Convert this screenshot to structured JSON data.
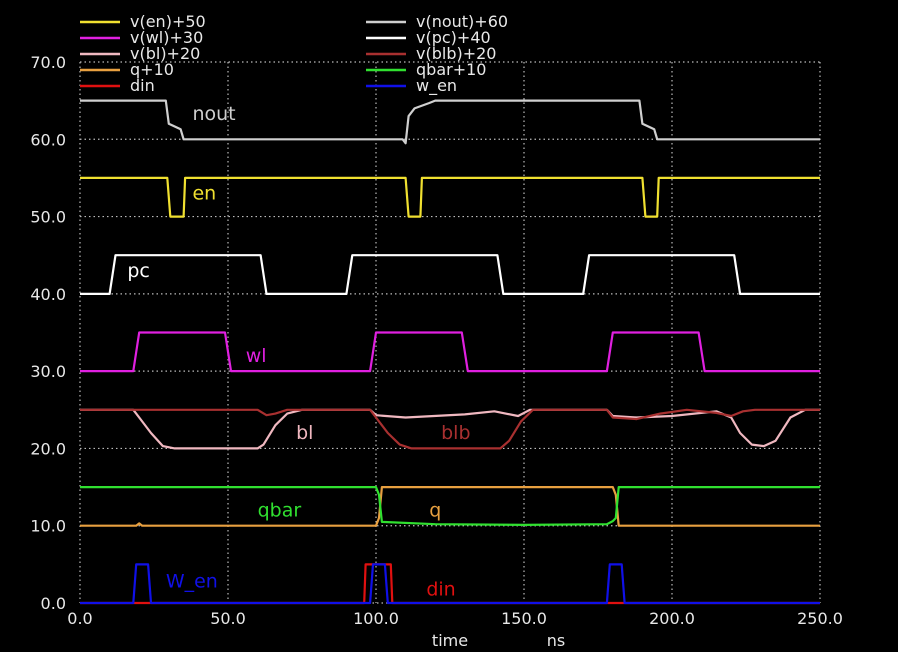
{
  "chart_data": {
    "type": "line",
    "xlabel": "time",
    "xunit": "ns",
    "xlim": [
      0,
      250
    ],
    "ylim": [
      0,
      70
    ],
    "x_ticks": [
      "0.0",
      "50.0",
      "100.0",
      "150.0",
      "200.0",
      "250.0"
    ],
    "y_ticks": [
      "0.0",
      "10.0",
      "20.0",
      "30.0",
      "40.0",
      "50.0",
      "60.0",
      "70.0"
    ],
    "grid": true,
    "legend_position": "top",
    "series": [
      {
        "name": "v(en)+50",
        "color": "#f0e030",
        "annotation": "en",
        "points": [
          [
            0,
            55
          ],
          [
            29.5,
            55
          ],
          [
            30.5,
            50
          ],
          [
            35,
            50
          ],
          [
            35.5,
            55
          ],
          [
            110,
            55
          ],
          [
            111,
            50
          ],
          [
            115,
            50
          ],
          [
            115.5,
            55
          ],
          [
            190,
            55
          ],
          [
            191,
            50
          ],
          [
            195,
            50
          ],
          [
            195.5,
            55
          ],
          [
            250,
            55
          ]
        ]
      },
      {
        "name": "v(nout)+60",
        "color": "#cfcfcf",
        "annotation": "nout",
        "points": [
          [
            0,
            65
          ],
          [
            29,
            65
          ],
          [
            30,
            62
          ],
          [
            34,
            61.3
          ],
          [
            35,
            60
          ],
          [
            109,
            60
          ],
          [
            110,
            59.5
          ],
          [
            111,
            63
          ],
          [
            113,
            64
          ],
          [
            118,
            64.7
          ],
          [
            120,
            65
          ],
          [
            189,
            65
          ],
          [
            190,
            62
          ],
          [
            194,
            61.3
          ],
          [
            195,
            60
          ],
          [
            250,
            60
          ]
        ]
      },
      {
        "name": "v(wl)+30",
        "color": "#e020e0",
        "annotation": "wl",
        "points": [
          [
            0,
            30
          ],
          [
            18,
            30
          ],
          [
            20,
            35
          ],
          [
            49,
            35
          ],
          [
            51,
            30
          ],
          [
            98,
            30
          ],
          [
            100,
            35
          ],
          [
            129,
            35
          ],
          [
            131,
            30
          ],
          [
            178,
            30
          ],
          [
            180,
            35
          ],
          [
            209,
            35
          ],
          [
            211,
            30
          ],
          [
            250,
            30
          ]
        ]
      },
      {
        "name": "v(pc)+40",
        "color": "#ffffff",
        "annotation": "pc",
        "points": [
          [
            0,
            40
          ],
          [
            10,
            40
          ],
          [
            12,
            45
          ],
          [
            61,
            45
          ],
          [
            63,
            40
          ],
          [
            90,
            40
          ],
          [
            92,
            45
          ],
          [
            141,
            45
          ],
          [
            143,
            40
          ],
          [
            170,
            40
          ],
          [
            172,
            45
          ],
          [
            221,
            45
          ],
          [
            223,
            40
          ],
          [
            250,
            40
          ]
        ]
      },
      {
        "name": "v(bl)+20",
        "color": "#f0b8c0",
        "annotation": "bl",
        "points": [
          [
            0,
            25
          ],
          [
            18,
            25
          ],
          [
            20,
            24
          ],
          [
            24,
            22
          ],
          [
            28,
            20.3
          ],
          [
            32,
            20
          ],
          [
            60,
            20
          ],
          [
            62,
            20.5
          ],
          [
            66,
            23
          ],
          [
            70,
            24.5
          ],
          [
            75,
            25
          ],
          [
            98,
            25
          ],
          [
            100,
            24.3
          ],
          [
            110,
            24
          ],
          [
            130,
            24.4
          ],
          [
            140,
            24.8
          ],
          [
            148,
            24.2
          ],
          [
            152,
            25
          ],
          [
            178,
            25
          ],
          [
            180,
            24.2
          ],
          [
            188,
            24
          ],
          [
            200,
            24.2
          ],
          [
            215,
            24.8
          ],
          [
            220,
            24
          ],
          [
            223,
            22
          ],
          [
            227,
            20.5
          ],
          [
            231,
            20.3
          ],
          [
            235,
            21
          ],
          [
            240,
            24
          ],
          [
            245,
            25
          ],
          [
            250,
            25
          ]
        ]
      },
      {
        "name": "v(blb)+20",
        "color": "#a83030",
        "annotation": "blb",
        "points": [
          [
            0,
            25
          ],
          [
            60,
            25
          ],
          [
            63,
            24.3
          ],
          [
            66,
            24.5
          ],
          [
            70,
            25
          ],
          [
            98,
            25
          ],
          [
            100,
            24
          ],
          [
            104,
            22
          ],
          [
            108,
            20.5
          ],
          [
            112,
            20
          ],
          [
            142,
            20
          ],
          [
            145,
            21
          ],
          [
            149,
            23.5
          ],
          [
            153,
            25
          ],
          [
            178,
            25
          ],
          [
            180,
            24
          ],
          [
            188,
            23.8
          ],
          [
            196,
            24.5
          ],
          [
            205,
            25
          ],
          [
            215,
            24.6
          ],
          [
            220,
            24.2
          ],
          [
            224,
            24.8
          ],
          [
            228,
            25
          ],
          [
            250,
            25
          ]
        ]
      },
      {
        "name": "q+10",
        "color": "#e8a040",
        "annotation": "q",
        "points": [
          [
            0,
            10
          ],
          [
            19,
            10
          ],
          [
            20,
            10.3
          ],
          [
            21,
            10
          ],
          [
            100,
            10
          ],
          [
            101,
            11
          ],
          [
            102,
            15
          ],
          [
            180,
            15
          ],
          [
            181,
            14
          ],
          [
            182,
            10
          ],
          [
            250,
            10
          ]
        ]
      },
      {
        "name": "qbar+10",
        "color": "#30e030",
        "annotation": "qbar",
        "points": [
          [
            0,
            15
          ],
          [
            100,
            15
          ],
          [
            101,
            14
          ],
          [
            102,
            10.5
          ],
          [
            120,
            10.2
          ],
          [
            150,
            10.1
          ],
          [
            178,
            10.2
          ],
          [
            180,
            10.6
          ],
          [
            181,
            11
          ],
          [
            182,
            15
          ],
          [
            250,
            15
          ]
        ]
      },
      {
        "name": "din",
        "color": "#e01010",
        "annotation": "din",
        "points": [
          [
            0,
            0
          ],
          [
            96,
            0
          ],
          [
            96.5,
            5
          ],
          [
            105,
            5
          ],
          [
            105.5,
            0
          ],
          [
            250,
            0
          ]
        ]
      },
      {
        "name": "w_en",
        "color": "#1010e8",
        "annotation": "W_en",
        "points": [
          [
            0,
            0
          ],
          [
            18,
            0
          ],
          [
            19,
            5
          ],
          [
            23,
            5
          ],
          [
            24,
            0
          ],
          [
            98,
            0
          ],
          [
            99,
            5
          ],
          [
            103,
            5
          ],
          [
            104,
            0
          ],
          [
            178,
            0
          ],
          [
            179,
            5
          ],
          [
            183,
            5
          ],
          [
            184,
            0
          ],
          [
            250,
            0
          ]
        ]
      }
    ],
    "annotations": [
      {
        "text": "nout",
        "series": "v(nout)+60",
        "at": [
          38,
          62.5
        ]
      },
      {
        "text": "en",
        "series": "v(en)+50",
        "at": [
          38,
          52.2
        ]
      },
      {
        "text": "pc",
        "series": "v(pc)+40",
        "at": [
          16,
          42.2
        ]
      },
      {
        "text": "wl",
        "series": "v(wl)+30",
        "at": [
          56,
          31.2
        ]
      },
      {
        "text": "bl",
        "series": "v(bl)+20",
        "at": [
          73,
          21.2
        ]
      },
      {
        "text": "blb",
        "series": "v(blb)+20",
        "at": [
          122,
          21.2
        ]
      },
      {
        "text": "qbar",
        "series": "qbar+10",
        "at": [
          60,
          11.2
        ]
      },
      {
        "text": "q",
        "series": "q+10",
        "at": [
          118,
          11.2
        ]
      },
      {
        "text": "W_en",
        "series": "w_en",
        "at": [
          29,
          2.0
        ]
      },
      {
        "text": "din",
        "series": "din",
        "at": [
          117,
          1.0
        ]
      }
    ]
  }
}
